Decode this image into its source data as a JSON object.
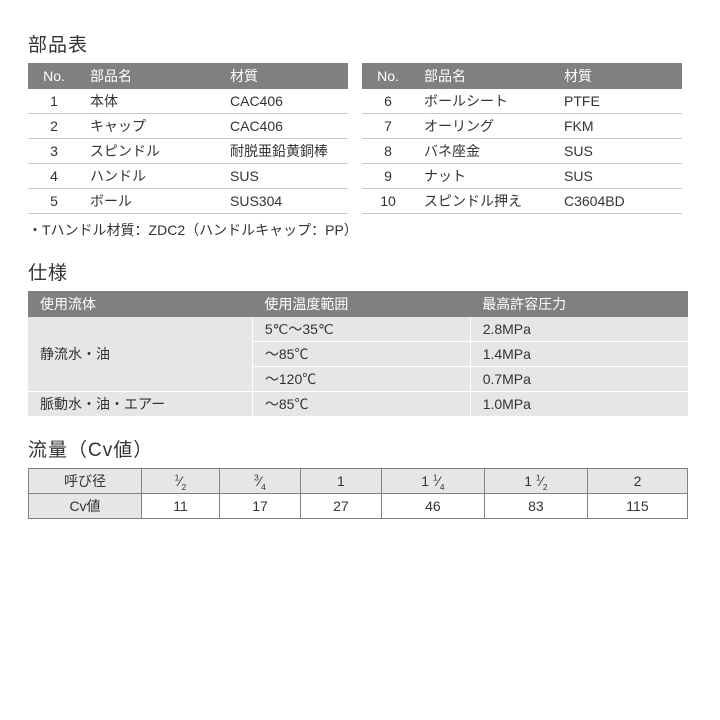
{
  "parts": {
    "title": "部品表",
    "columns": {
      "no": "No.",
      "name": "部品名",
      "material": "材質"
    },
    "left": [
      {
        "no": "1",
        "name": "本体",
        "material": "CAC406"
      },
      {
        "no": "2",
        "name": "キャップ",
        "material": "CAC406"
      },
      {
        "no": "3",
        "name": "スピンドル",
        "material": "耐脱亜鉛黄銅棒"
      },
      {
        "no": "4",
        "name": "ハンドル",
        "material": "SUS"
      },
      {
        "no": "5",
        "name": "ボール",
        "material": "SUS304"
      }
    ],
    "right": [
      {
        "no": "6",
        "name": "ボールシート",
        "material": "PTFE"
      },
      {
        "no": "7",
        "name": "オーリング",
        "material": "FKM"
      },
      {
        "no": "8",
        "name": "バネ座金",
        "material": "SUS"
      },
      {
        "no": "9",
        "name": "ナット",
        "material": "SUS"
      },
      {
        "no": "10",
        "name": "スピンドル押え",
        "material": "C3604BD"
      }
    ],
    "footnote": "・Tハンドル材質：ZDC2（ハンドルキャップ：PP）"
  },
  "spec": {
    "title": "仕様",
    "columns": {
      "fluid": "使用流体",
      "temp": "使用温度範囲",
      "press": "最高許容圧力"
    },
    "rows": [
      {
        "fluid": "静流水・油",
        "fluid_span": 3,
        "temp": "5℃～35℃",
        "press": "2.8MPa"
      },
      {
        "temp": "～85℃",
        "press": "1.4MPa"
      },
      {
        "temp": "～120℃",
        "press": "0.7MPa"
      },
      {
        "fluid": "脈動水・油・エアー",
        "fluid_span": 1,
        "temp": "～85℃",
        "press": "1.0MPa"
      }
    ]
  },
  "cv": {
    "title": "流量（Cv値）",
    "row1_label": "呼び径",
    "sizes_html": [
      "<sup>1</sup>⁄<sub>2</sub>",
      "<sup>3</sup>⁄<sub>4</sub>",
      "1",
      "1 <sup>1</sup>⁄<sub>4</sub>",
      "1 <sup>1</sup>⁄<sub>2</sub>",
      "2"
    ],
    "row2_label": "Cv値",
    "values": [
      "11",
      "17",
      "27",
      "46",
      "83",
      "115"
    ]
  },
  "style": {
    "header_bg": "#808080",
    "header_fg": "#ffffff",
    "cell_bg_shaded": "#e6e6e6",
    "border_light": "#c8c8c8",
    "border_dark": "#808080",
    "page_bg": "#ffffff",
    "text_color": "#333333",
    "title_fontsize": 19,
    "body_fontsize": 14
  }
}
